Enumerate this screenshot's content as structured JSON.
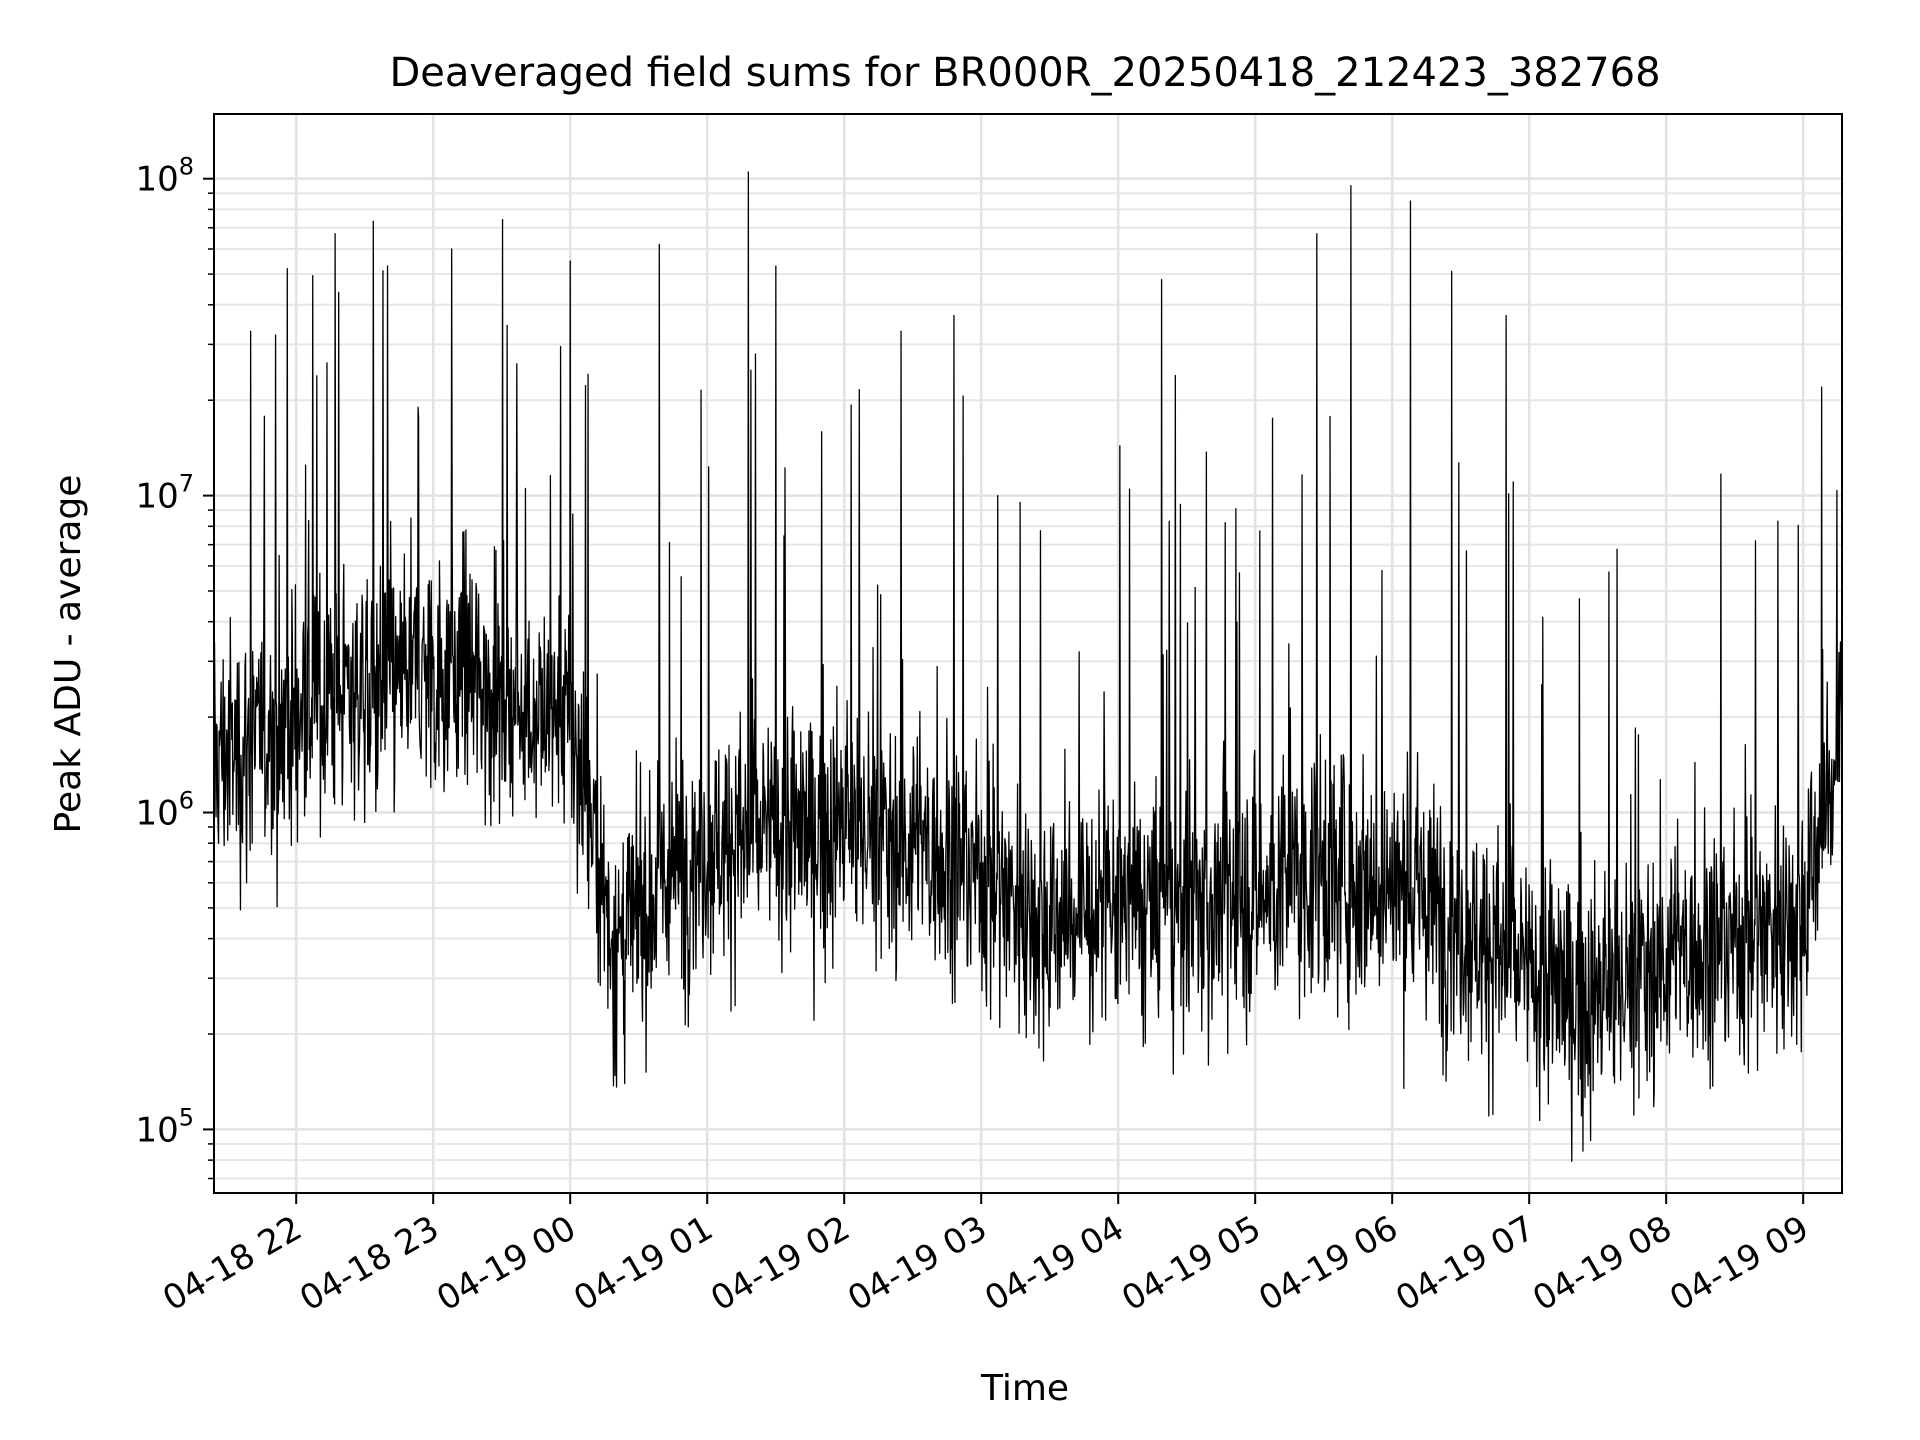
{
  "chart_data": {
    "type": "line",
    "title": "Deaveraged field sums for BR000R_20250418_212423_382768",
    "xlabel": "Time",
    "ylabel": "Peak ADU - average",
    "yscale": "log",
    "ylim": [
      63000,
      160000000
    ],
    "xlim": [
      "2025-04-18 21:24",
      "2025-04-19 09:17"
    ],
    "grid": true,
    "line_color": "#000000",
    "x_ticks": [
      "04-18 22",
      "04-18 23",
      "04-19 00",
      "04-19 01",
      "04-19 02",
      "04-19 03",
      "04-19 04",
      "04-19 05",
      "04-19 06",
      "04-19 07",
      "04-19 08",
      "04-19 09"
    ],
    "x_tick_times": [
      "2025-04-18 22:00",
      "2025-04-18 23:00",
      "2025-04-19 00:00",
      "2025-04-19 01:00",
      "2025-04-19 02:00",
      "2025-04-19 03:00",
      "2025-04-19 04:00",
      "2025-04-19 05:00",
      "2025-04-19 06:00",
      "2025-04-19 07:00",
      "2025-04-19 08:00",
      "2025-04-19 09:00"
    ],
    "y_ticks": [
      {
        "base": "10",
        "exp": "5",
        "value": 100000
      },
      {
        "base": "10",
        "exp": "6",
        "value": 1000000
      },
      {
        "base": "10",
        "exp": "7",
        "value": 10000000
      },
      {
        "base": "10",
        "exp": "8",
        "value": 100000000
      }
    ],
    "series": [
      {
        "x": [
          "2025-04-18 21:24",
          "2025-04-18 21:40",
          "2025-04-18 22:00",
          "2025-04-18 22:20",
          "2025-04-18 22:40",
          "2025-04-18 23:00",
          "2025-04-18 23:20",
          "2025-04-18 23:40",
          "2025-04-19 00:00",
          "2025-04-19 00:10",
          "2025-04-19 00:20",
          "2025-04-19 00:40",
          "2025-04-19 01:00",
          "2025-04-19 01:30",
          "2025-04-19 02:00",
          "2025-04-19 02:30",
          "2025-04-19 03:00",
          "2025-04-19 03:30",
          "2025-04-19 04:00",
          "2025-04-19 04:30",
          "2025-04-19 05:00",
          "2025-04-19 05:30",
          "2025-04-19 06:00",
          "2025-04-19 06:30",
          "2025-04-19 07:00",
          "2025-04-19 07:30",
          "2025-04-19 08:00",
          "2025-04-19 08:30",
          "2025-04-19 09:00",
          "2025-04-19 09:17"
        ],
        "y": [
          1500000,
          1600000,
          2000000,
          2500000,
          2500000,
          2800000,
          2500000,
          2200000,
          1800000,
          900000,
          350000,
          600000,
          800000,
          850000,
          900000,
          800000,
          650000,
          450000,
          500000,
          500000,
          550000,
          650000,
          600000,
          450000,
          300000,
          250000,
          350000,
          400000,
          500000,
          1800000
        ]
      }
    ],
    "spikes": [
      {
        "x": "2025-04-18 21:40",
        "y": 33000000
      },
      {
        "x": "2025-04-18 21:56",
        "y": 52000000
      },
      {
        "x": "2025-04-18 22:17",
        "y": 67000000
      },
      {
        "x": "2025-04-18 22:40",
        "y": 53000000
      },
      {
        "x": "2025-04-18 23:08",
        "y": 60000000
      },
      {
        "x": "2025-04-19 00:00",
        "y": 55000000
      },
      {
        "x": "2025-04-19 00:39",
        "y": 62000000
      },
      {
        "x": "2025-04-19 01:18",
        "y": 105000000
      },
      {
        "x": "2025-04-19 01:30",
        "y": 53000000
      },
      {
        "x": "2025-04-19 02:25",
        "y": 33000000
      },
      {
        "x": "2025-04-19 02:48",
        "y": 37000000
      },
      {
        "x": "2025-04-19 04:19",
        "y": 48000000
      },
      {
        "x": "2025-04-19 05:27",
        "y": 67000000
      },
      {
        "x": "2025-04-19 05:42",
        "y": 95000000
      },
      {
        "x": "2025-04-19 06:08",
        "y": 85000000
      },
      {
        "x": "2025-04-19 06:26",
        "y": 51000000
      },
      {
        "x": "2025-04-19 06:50",
        "y": 37000000
      },
      {
        "x": "2025-04-19 09:08",
        "y": 22000000
      }
    ]
  }
}
